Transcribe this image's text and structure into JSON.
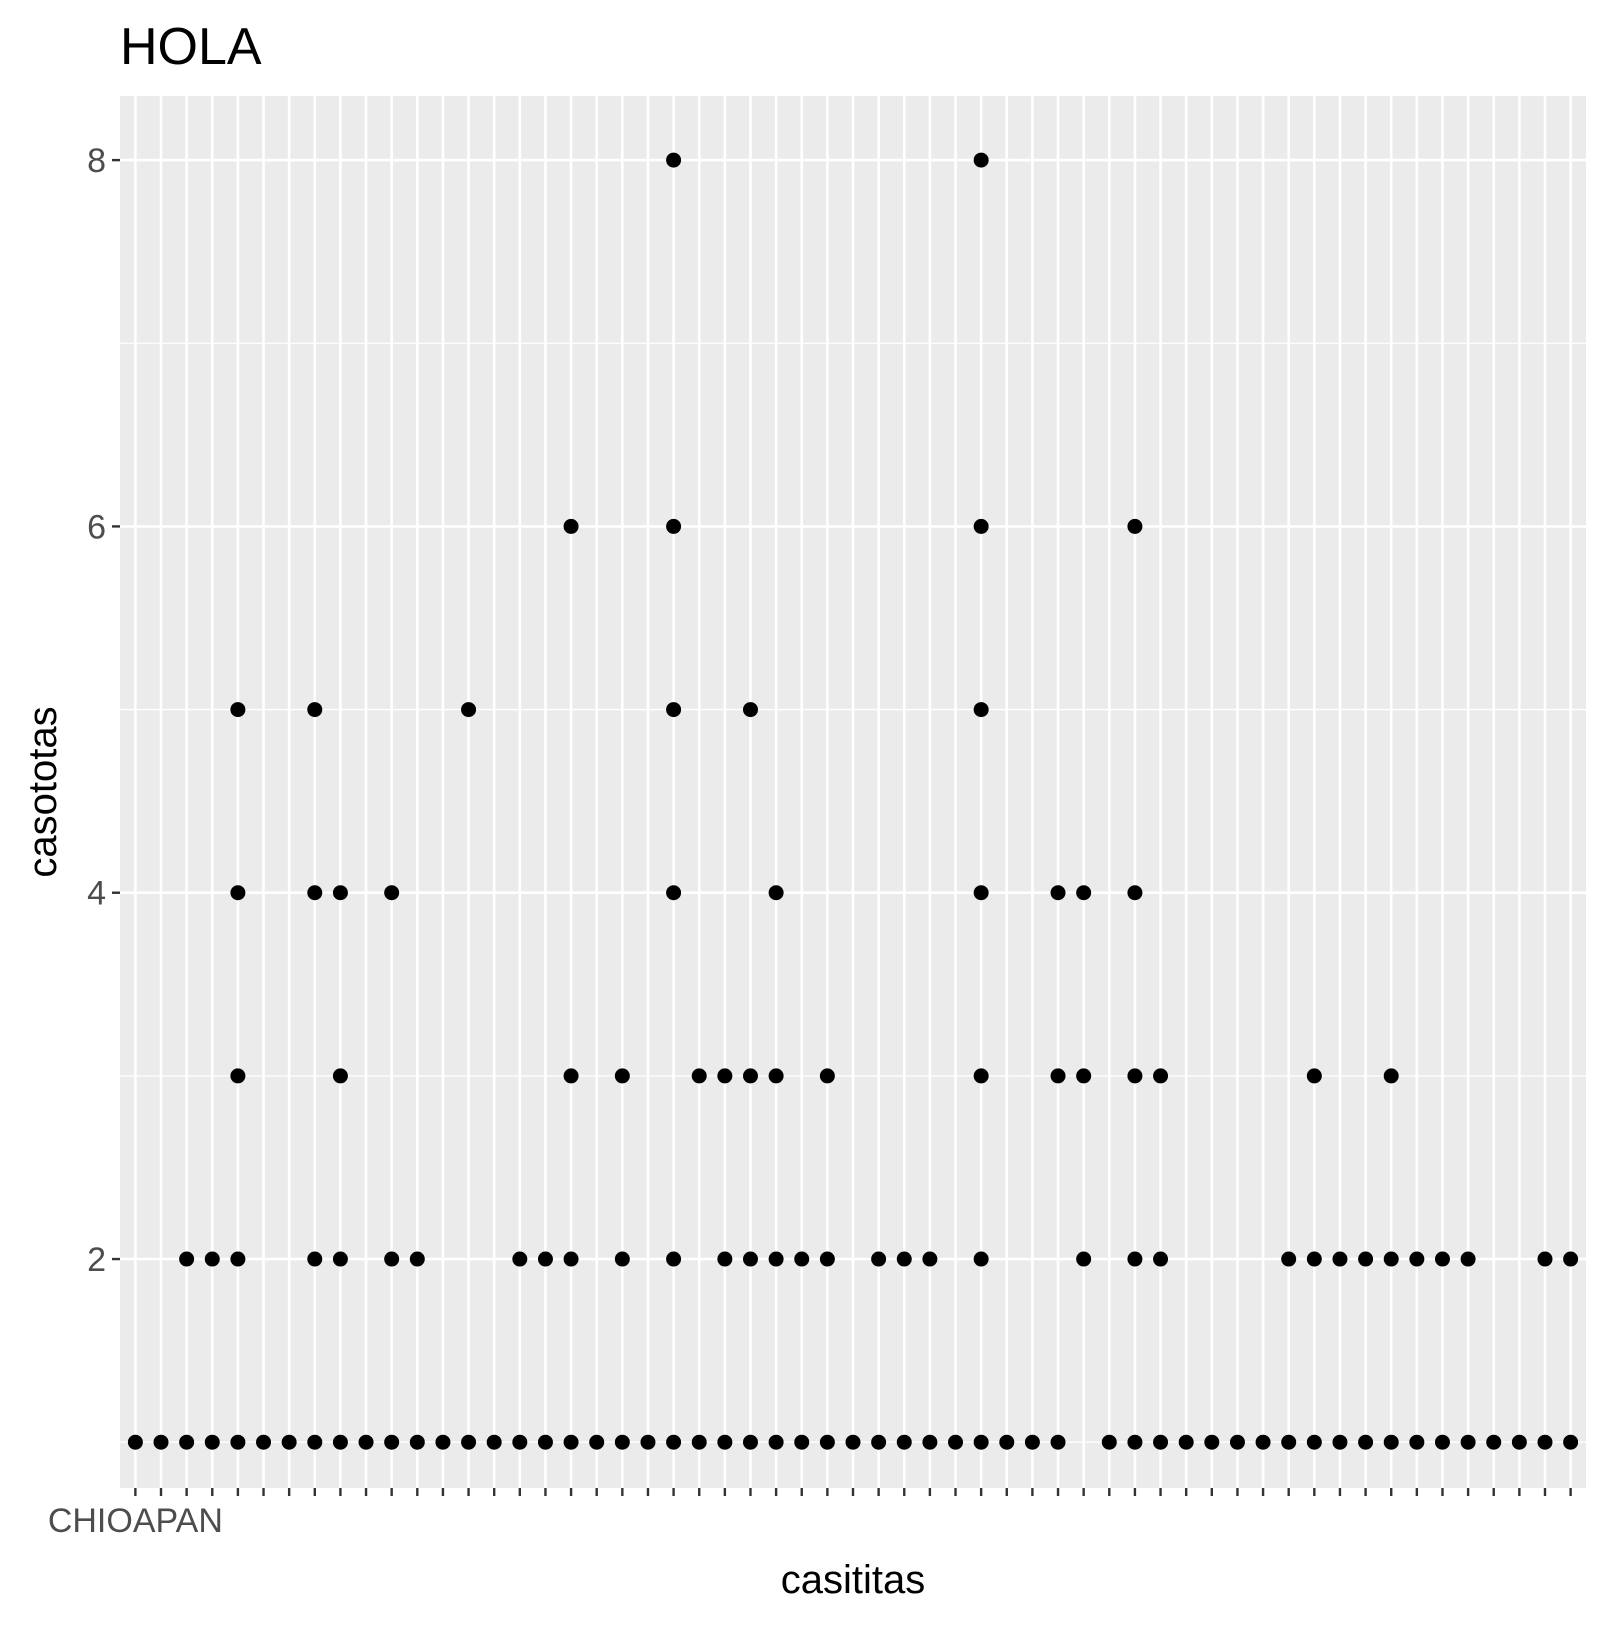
{
  "chart_data": {
    "type": "scatter",
    "title": "HOLA",
    "xlabel": "casititas",
    "ylabel": "casototas",
    "ylim": [
      0.75,
      8.35
    ],
    "yticks": [
      2,
      4,
      6,
      8
    ],
    "grid": true,
    "legend": "none",
    "colors": {
      "panel": "#ebebeb",
      "grid": "#ffffff",
      "point": "#000000",
      "axis_text": "#4d4d4d",
      "title_text": "#000000"
    },
    "x_tick_label_first": "CHIOAPAN",
    "x_tick_labels_overlapping_note": "",
    "x_count": 57,
    "points": [
      [
        1,
        1
      ],
      [
        2,
        1
      ],
      [
        3,
        1
      ],
      [
        3,
        2
      ],
      [
        4,
        1
      ],
      [
        4,
        2
      ],
      [
        5,
        1
      ],
      [
        5,
        2
      ],
      [
        5,
        3
      ],
      [
        5,
        4
      ],
      [
        5,
        5
      ],
      [
        6,
        1
      ],
      [
        7,
        1
      ],
      [
        8,
        1
      ],
      [
        8,
        2
      ],
      [
        8,
        4
      ],
      [
        8,
        5
      ],
      [
        9,
        1
      ],
      [
        9,
        2
      ],
      [
        9,
        3
      ],
      [
        9,
        4
      ],
      [
        10,
        1
      ],
      [
        11,
        1
      ],
      [
        11,
        2
      ],
      [
        11,
        4
      ],
      [
        12,
        1
      ],
      [
        12,
        2
      ],
      [
        13,
        1
      ],
      [
        14,
        1
      ],
      [
        14,
        5
      ],
      [
        15,
        1
      ],
      [
        16,
        1
      ],
      [
        16,
        2
      ],
      [
        17,
        1
      ],
      [
        17,
        2
      ],
      [
        18,
        1
      ],
      [
        18,
        2
      ],
      [
        18,
        3
      ],
      [
        18,
        6
      ],
      [
        19,
        1
      ],
      [
        20,
        1
      ],
      [
        20,
        2
      ],
      [
        20,
        3
      ],
      [
        21,
        1
      ],
      [
        22,
        1
      ],
      [
        22,
        2
      ],
      [
        22,
        4
      ],
      [
        22,
        5
      ],
      [
        22,
        6
      ],
      [
        22,
        8
      ],
      [
        23,
        1
      ],
      [
        23,
        3
      ],
      [
        24,
        1
      ],
      [
        24,
        2
      ],
      [
        24,
        3
      ],
      [
        25,
        1
      ],
      [
        25,
        2
      ],
      [
        25,
        3
      ],
      [
        25,
        5
      ],
      [
        26,
        1
      ],
      [
        26,
        2
      ],
      [
        26,
        3
      ],
      [
        26,
        4
      ],
      [
        27,
        1
      ],
      [
        27,
        2
      ],
      [
        28,
        1
      ],
      [
        28,
        2
      ],
      [
        28,
        3
      ],
      [
        29,
        1
      ],
      [
        30,
        1
      ],
      [
        30,
        2
      ],
      [
        31,
        1
      ],
      [
        31,
        2
      ],
      [
        32,
        1
      ],
      [
        32,
        2
      ],
      [
        33,
        1
      ],
      [
        34,
        1
      ],
      [
        34,
        2
      ],
      [
        34,
        3
      ],
      [
        34,
        4
      ],
      [
        34,
        5
      ],
      [
        34,
        6
      ],
      [
        34,
        8
      ],
      [
        35,
        1
      ],
      [
        36,
        1
      ],
      [
        37,
        1
      ],
      [
        37,
        3
      ],
      [
        37,
        4
      ],
      [
        38,
        2
      ],
      [
        38,
        3
      ],
      [
        38,
        4
      ],
      [
        39,
        1
      ],
      [
        40,
        1
      ],
      [
        40,
        2
      ],
      [
        40,
        3
      ],
      [
        40,
        4
      ],
      [
        40,
        6
      ],
      [
        41,
        1
      ],
      [
        41,
        2
      ],
      [
        41,
        3
      ],
      [
        42,
        1
      ],
      [
        43,
        1
      ],
      [
        44,
        1
      ],
      [
        45,
        1
      ],
      [
        46,
        1
      ],
      [
        46,
        2
      ],
      [
        47,
        1
      ],
      [
        47,
        2
      ],
      [
        47,
        3
      ],
      [
        48,
        1
      ],
      [
        48,
        2
      ],
      [
        49,
        1
      ],
      [
        49,
        2
      ],
      [
        50,
        1
      ],
      [
        50,
        2
      ],
      [
        50,
        3
      ],
      [
        51,
        1
      ],
      [
        51,
        2
      ],
      [
        52,
        1
      ],
      [
        52,
        2
      ],
      [
        53,
        1
      ],
      [
        53,
        2
      ],
      [
        54,
        1
      ],
      [
        55,
        1
      ],
      [
        56,
        1
      ],
      [
        56,
        2
      ],
      [
        57,
        1
      ],
      [
        57,
        2
      ]
    ]
  }
}
